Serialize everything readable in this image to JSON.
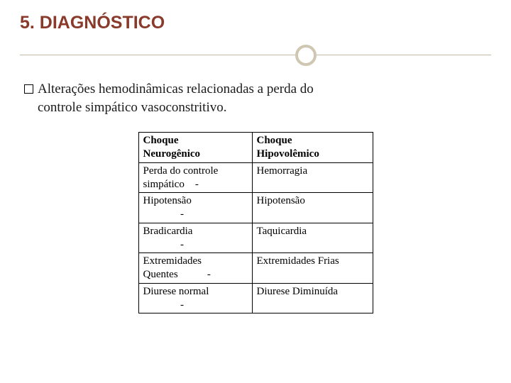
{
  "title": "5. DIAGNÓSTICO",
  "body": {
    "bullet_glyph": "",
    "line1": "Alterações hemodinâmicas relacionadas a perda do",
    "line2": "controle simpático vasoconstritivo."
  },
  "table": {
    "colA_header_l1": "Choque",
    "colA_header_l2": "Neurogênico",
    "colB_header_l1": "Choque",
    "colB_header_l2": "Hipovolêmico",
    "rows": [
      {
        "a": "Perda do controle\nsimpático    -",
        "b": "Hemorragia"
      },
      {
        "a": "Hipotensão\n              -",
        "b": "Hipotensão"
      },
      {
        "a": "Bradicardia\n              -",
        "b": "Taquicardia"
      },
      {
        "a": "Extremidades\nQuentes           -",
        "b": "Extremidades Frias"
      },
      {
        "a": "Diurese normal\n              -",
        "b": "Diurese Diminuída"
      }
    ]
  },
  "colors": {
    "title": "#8a3a2a",
    "rule": "#c2b8a3",
    "circle_border": "#d0c7b2",
    "text": "#1a1a1a",
    "table_border": "#000000",
    "background": "#ffffff"
  }
}
